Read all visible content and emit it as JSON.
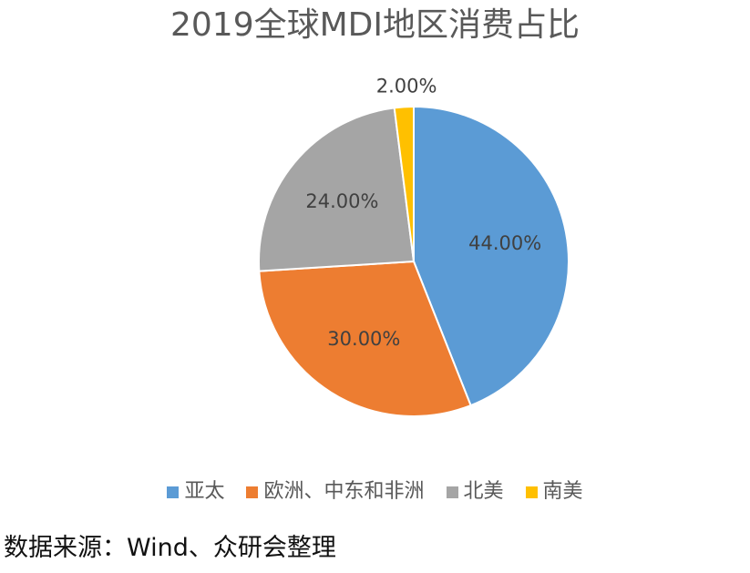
{
  "chart_data": {
    "type": "pie",
    "title": "2019全球MDI地区消费占比",
    "categories": [
      "亚太",
      "欧洲、中东和非洲",
      "北美",
      "南美"
    ],
    "values": [
      44,
      30,
      24,
      2
    ],
    "data_labels": [
      "44.00%",
      "30.00%",
      "24.00%",
      "2.00%"
    ],
    "colors": [
      "#5B9BD5",
      "#ED7D31",
      "#A5A5A5",
      "#FFC000"
    ],
    "legend_position": "bottom",
    "start_angle": "top, clockwise"
  },
  "source_note": "数据来源：Wind、众研会整理"
}
